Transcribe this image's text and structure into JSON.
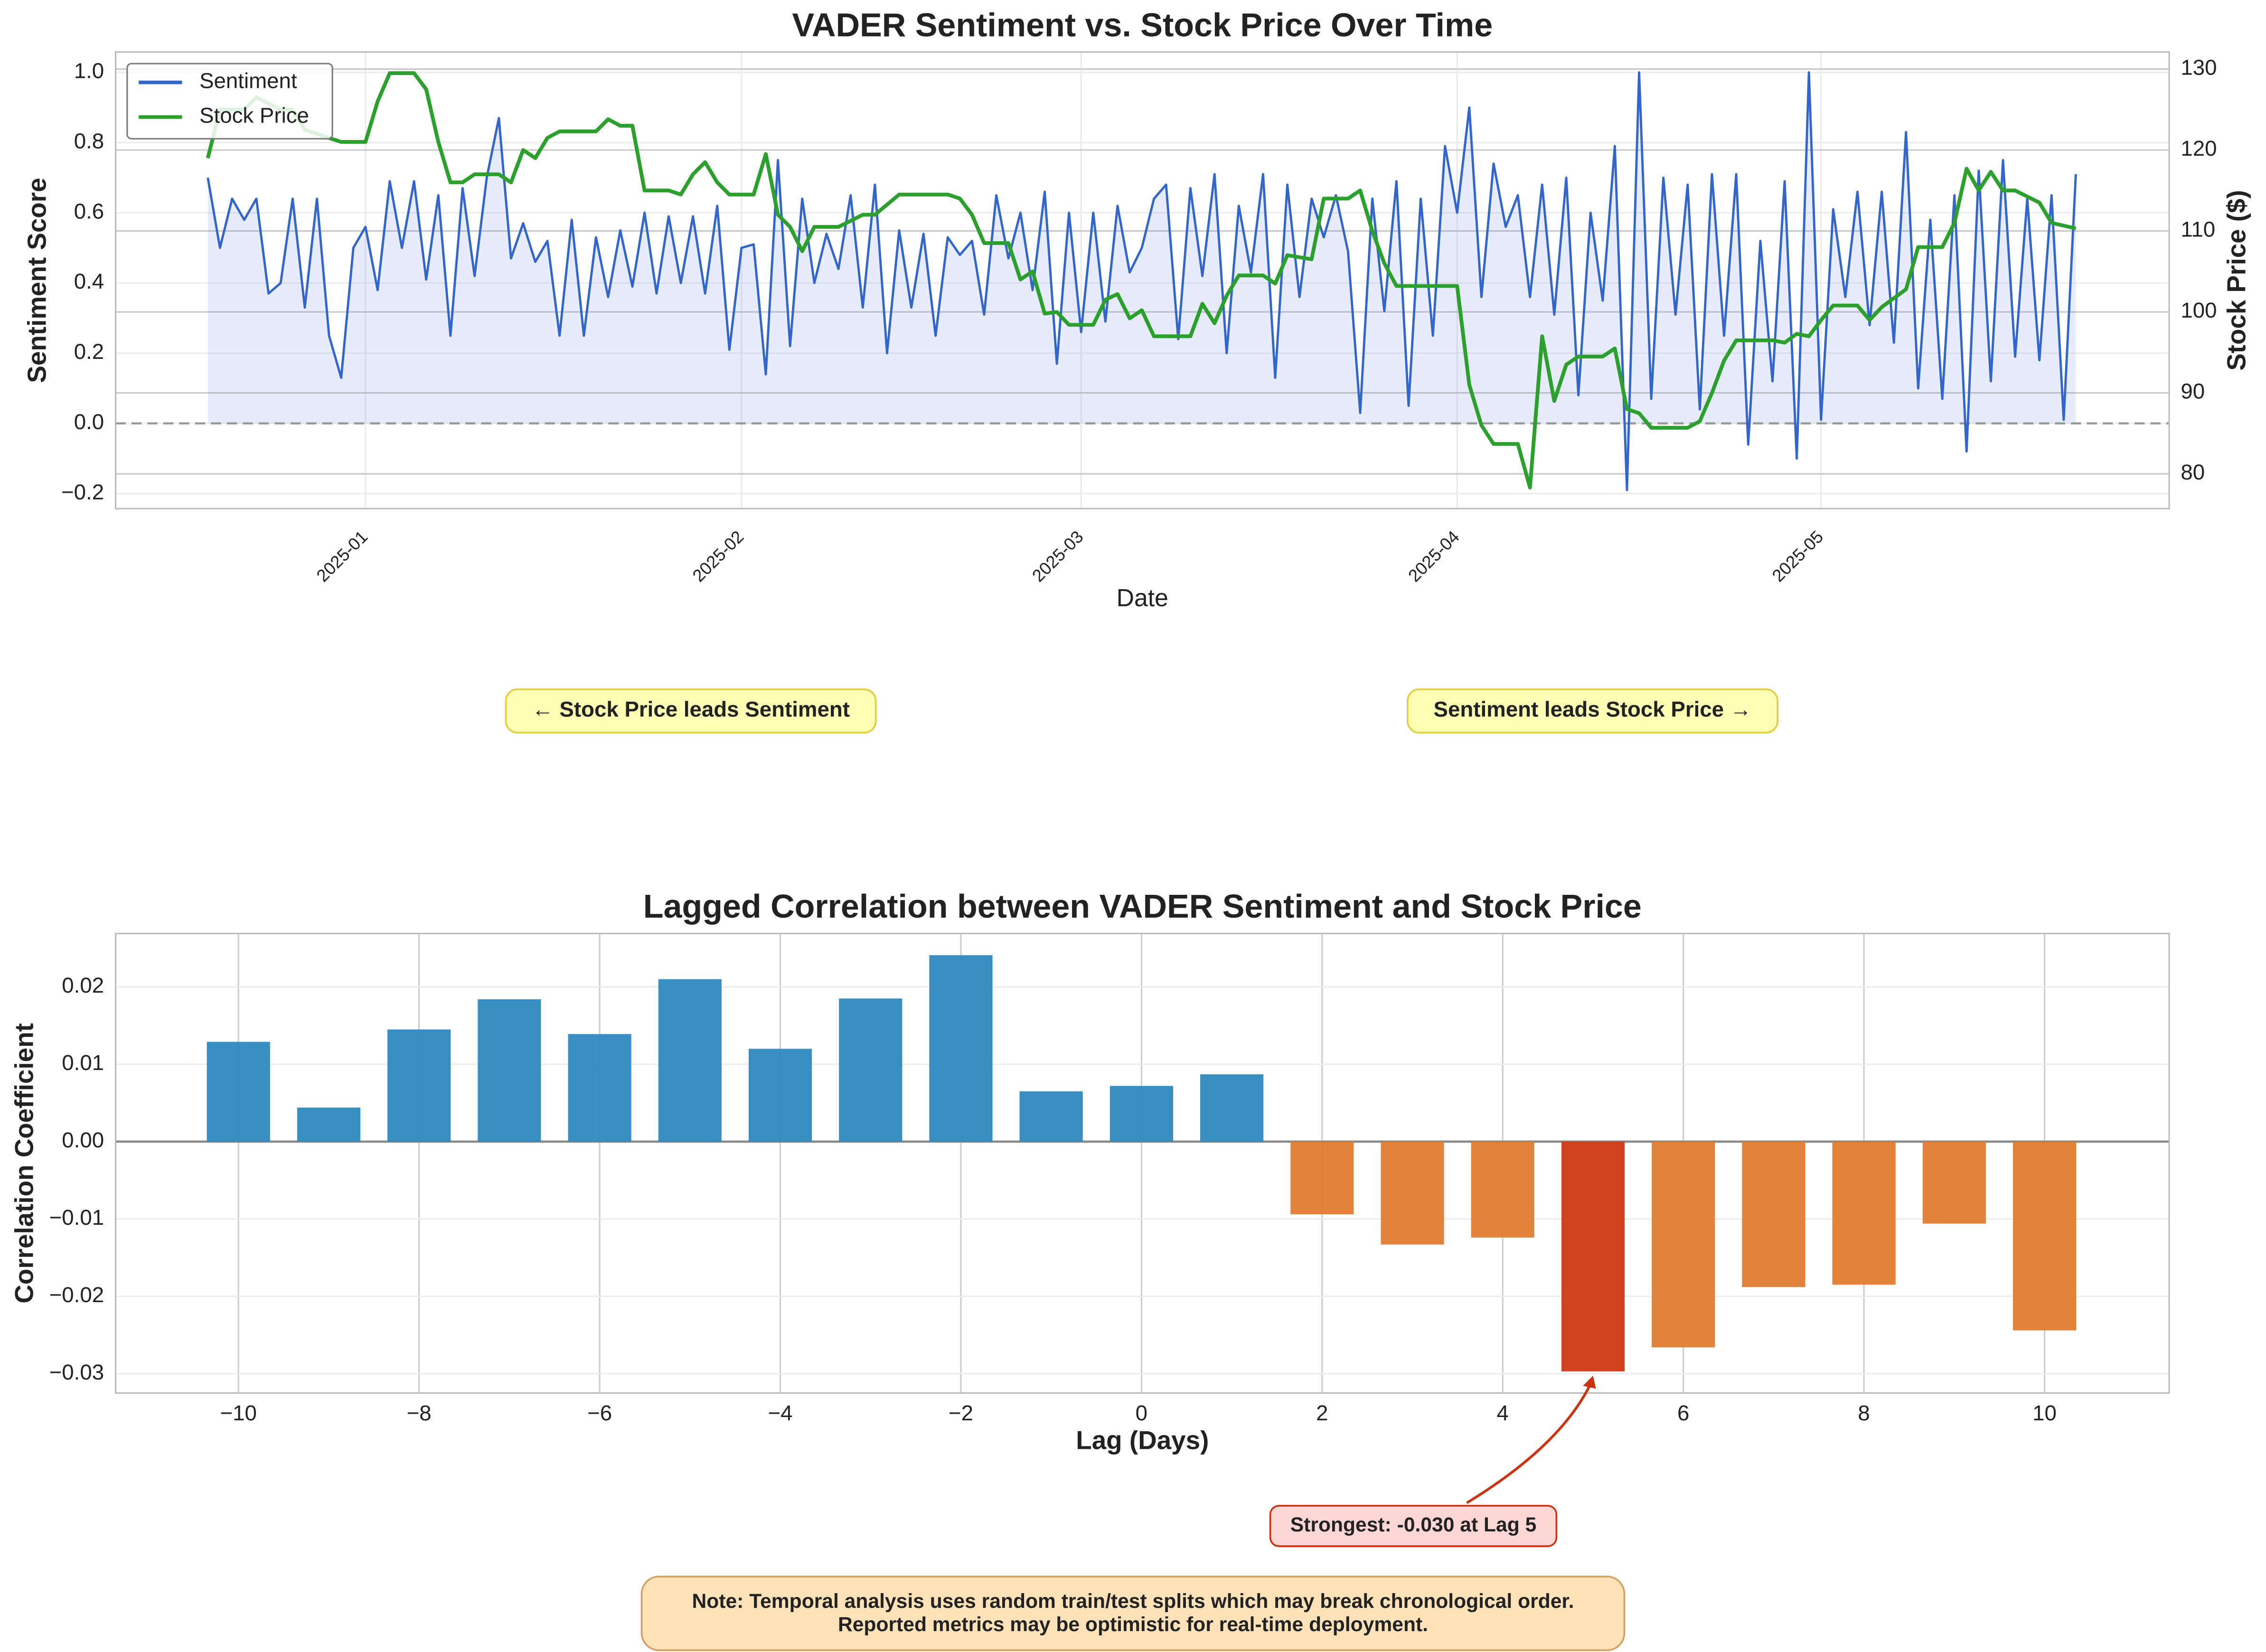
{
  "chart_data": [
    {
      "type": "line",
      "title": "VADER Sentiment vs. Stock Price Over Time",
      "xlabel": "Date",
      "ylabel": "Sentiment Score",
      "y2label": "Stock Price ($)",
      "xlim": [
        -20.6,
        148.7
      ],
      "xticks": [
        {
          "value": 0,
          "label": "2025-01"
        },
        {
          "value": 31,
          "label": "2025-02"
        },
        {
          "value": 59,
          "label": "2025-03"
        },
        {
          "value": 90,
          "label": "2025-04"
        },
        {
          "value": 120,
          "label": "2025-05"
        }
      ],
      "ylim": [
        -0.243,
        1.058
      ],
      "yticks": [
        {
          "value": -0.2,
          "label": "−0.2"
        },
        {
          "value": 0,
          "label": "0.0"
        },
        0.2,
        0.4,
        0.6,
        0.8,
        {
          "value": 1,
          "label": "1.0"
        }
      ],
      "y2lim": [
        75.7,
        132.1
      ],
      "y2ticks": [
        80,
        90,
        100,
        110,
        120,
        130
      ],
      "hline": 0,
      "grid": true,
      "legend": "upper left",
      "series": [
        {
          "name": "Sentiment",
          "color": "#3366cc",
          "fill": true,
          "x": [
            -13,
            -12,
            -11,
            -10,
            -9,
            -8,
            -7,
            -6,
            -5,
            -4,
            -3,
            -2,
            -1,
            0,
            1,
            2,
            3,
            4,
            5,
            6,
            7,
            8,
            9,
            10,
            11,
            12,
            13,
            14,
            15,
            16,
            17,
            18,
            19,
            20,
            21,
            22,
            23,
            24,
            25,
            26,
            27,
            28,
            29,
            30,
            31,
            32,
            33,
            34,
            35,
            36,
            37,
            38,
            39,
            40,
            41,
            42,
            43,
            44,
            45,
            46,
            47,
            48,
            49,
            50,
            51,
            52,
            53,
            54,
            55,
            56,
            57,
            58,
            59,
            60,
            61,
            62,
            63,
            64,
            65,
            66,
            67,
            68,
            69,
            70,
            71,
            72,
            73,
            74,
            75,
            76,
            77,
            78,
            79,
            80,
            81,
            82,
            83,
            84,
            85,
            86,
            87,
            88,
            89,
            90,
            91,
            92,
            93,
            94,
            95,
            96,
            97,
            98,
            99,
            100,
            101,
            102,
            103,
            104,
            105,
            106,
            107,
            108,
            109,
            110,
            111,
            112,
            113,
            114,
            115,
            116,
            117,
            118,
            119,
            120,
            121,
            122,
            123,
            124,
            125,
            126,
            127,
            128,
            129,
            130,
            131,
            132,
            133,
            134,
            135,
            136,
            137,
            138,
            139,
            140,
            141
          ],
          "values": [
            0.7,
            0.5,
            0.64,
            0.58,
            0.64,
            0.37,
            0.4,
            0.64,
            0.33,
            0.64,
            0.25,
            0.13,
            0.5,
            0.56,
            0.38,
            0.69,
            0.5,
            0.69,
            0.41,
            0.65,
            0.25,
            0.67,
            0.42,
            0.7,
            0.87,
            0.47,
            0.57,
            0.46,
            0.52,
            0.25,
            0.58,
            0.25,
            0.53,
            0.36,
            0.55,
            0.39,
            0.6,
            0.37,
            0.59,
            0.4,
            0.59,
            0.37,
            0.62,
            0.21,
            0.5,
            0.51,
            0.14,
            0.75,
            0.22,
            0.64,
            0.4,
            0.54,
            0.44,
            0.65,
            0.33,
            0.68,
            0.2,
            0.55,
            0.33,
            0.54,
            0.25,
            0.53,
            0.48,
            0.52,
            0.31,
            0.65,
            0.47,
            0.6,
            0.38,
            0.66,
            0.17,
            0.6,
            0.26,
            0.6,
            0.29,
            0.62,
            0.43,
            0.5,
            0.64,
            0.68,
            0.24,
            0.67,
            0.42,
            0.71,
            0.2,
            0.62,
            0.43,
            0.71,
            0.13,
            0.68,
            0.36,
            0.64,
            0.53,
            0.65,
            0.49,
            0.03,
            0.64,
            0.32,
            0.69,
            0.05,
            0.64,
            0.25,
            0.79,
            0.6,
            0.9,
            0.36,
            0.74,
            0.56,
            0.65,
            0.36,
            0.68,
            0.31,
            0.7,
            0.08,
            0.6,
            0.35,
            0.79,
            -0.19,
            1.0,
            0.07,
            0.7,
            0.31,
            0.68,
            0.04,
            0.71,
            0.25,
            0.71,
            -0.06,
            0.52,
            0.12,
            0.69,
            -0.1,
            1.0,
            0.01,
            0.61,
            0.36,
            0.66,
            0.28,
            0.66,
            0.23,
            0.83,
            0.1,
            0.58,
            0.07,
            0.65,
            -0.08,
            0.72,
            0.12,
            0.75,
            0.19,
            0.64,
            0.18,
            0.65,
            0.01,
            0.71
          ]
        },
        {
          "name": "Stock Price",
          "color": "#2ca02c",
          "axis": "y2",
          "x": [
            -13,
            -12,
            -10,
            -9,
            -7,
            -6,
            -5,
            -2,
            0,
            1,
            2,
            4,
            5,
            6,
            7,
            8,
            9,
            11,
            12,
            13,
            14,
            15,
            16,
            19,
            20,
            21,
            22,
            23,
            25,
            26,
            27,
            28,
            29,
            30,
            32,
            33,
            34,
            35,
            36,
            37,
            39,
            41,
            42,
            44,
            48,
            49,
            50,
            51,
            53,
            54,
            55,
            56,
            57,
            58,
            60,
            61,
            62,
            63,
            64,
            65,
            68,
            69,
            70,
            71,
            72,
            74,
            75,
            76,
            78,
            79,
            81,
            82,
            83,
            84,
            85,
            88,
            90,
            91,
            92,
            93,
            95,
            96,
            97,
            98,
            99,
            100,
            102,
            103,
            104,
            105,
            106,
            109,
            110,
            111,
            112,
            113,
            116,
            117,
            118,
            119,
            120,
            121,
            123,
            124,
            125,
            127,
            128,
            130,
            131,
            132,
            133,
            134,
            135,
            136,
            138,
            139,
            141
          ],
          "values": [
            119,
            125,
            125,
            126.5,
            125,
            125,
            122.5,
            121,
            121,
            126,
            129.5,
            129.5,
            127.5,
            121,
            116,
            116,
            117,
            117,
            116,
            120,
            119,
            121.5,
            122.3,
            122.3,
            123.8,
            123,
            123,
            115,
            115,
            114.5,
            117,
            118.5,
            116,
            114.5,
            114.5,
            119.5,
            112,
            110.5,
            107.5,
            110.5,
            110.5,
            112,
            112,
            114.5,
            114.5,
            114,
            112,
            108.5,
            108.5,
            104,
            105,
            99.8,
            100,
            98.4,
            98.4,
            101.5,
            102.2,
            99.2,
            100.2,
            97,
            97,
            101,
            98.6,
            102,
            104.5,
            104.5,
            103.5,
            107,
            106.5,
            114,
            114,
            115,
            110,
            106,
            103.2,
            103.2,
            103.2,
            91,
            86,
            83.7,
            83.7,
            78.3,
            97,
            89,
            93.5,
            94.5,
            94.5,
            95.5,
            88,
            87.5,
            85.7,
            85.7,
            86.5,
            90,
            94,
            96.5,
            96.5,
            96.2,
            97.3,
            97,
            99,
            100.8,
            100.8,
            99,
            100.6,
            102.8,
            108,
            108,
            111,
            117.7,
            115,
            117.3,
            115,
            115,
            113.5,
            111,
            110.3
          ]
        }
      ]
    },
    {
      "type": "bar",
      "title": "Lagged Correlation between VADER Sentiment and Stock Price",
      "xlabel": "Lag (Days)",
      "ylabel": "Correlation Coefficient",
      "x": [
        -10,
        -9,
        -8,
        -7,
        -6,
        -5,
        -4,
        -3,
        -2,
        -1,
        0,
        1,
        2,
        3,
        4,
        5,
        6,
        7,
        8,
        9,
        10
      ],
      "values": [
        0.0129,
        0.0044,
        0.0145,
        0.0184,
        0.0139,
        0.021,
        0.012,
        0.0185,
        0.0241,
        0.0065,
        0.0072,
        0.0087,
        -0.0094,
        -0.0133,
        -0.0124,
        -0.0297,
        -0.0266,
        -0.0188,
        -0.0185,
        -0.0106,
        -0.0244
      ],
      "colors": [
        "#2e88c0",
        "#2e88c0",
        "#2e88c0",
        "#2e88c0",
        "#2e88c0",
        "#2e88c0",
        "#2e88c0",
        "#2e88c0",
        "#2e88c0",
        "#2e88c0",
        "#2e88c0",
        "#2e88c0",
        "#e07b30",
        "#e07b30",
        "#e07b30",
        "#cc3a12",
        "#e07b30",
        "#e07b30",
        "#e07b30",
        "#e07b30",
        "#e07b30"
      ],
      "xlim": [
        -11.36,
        11.38
      ],
      "xticks": [
        {
          "value": -10,
          "label": "−10"
        },
        {
          "value": -8,
          "label": "−8"
        },
        {
          "value": -6,
          "label": "−6"
        },
        {
          "value": -4,
          "label": "−4"
        },
        {
          "value": -2,
          "label": "−2"
        },
        0,
        2,
        4,
        6,
        8,
        10
      ],
      "ylim": [
        -0.0325,
        0.0269
      ],
      "yticks": [
        {
          "value": -0.03,
          "label": "−0.03"
        },
        {
          "value": -0.02,
          "label": "−0.02"
        },
        {
          "value": -0.01,
          "label": "−0.01"
        },
        {
          "value": 0,
          "label": "0.00"
        },
        0.01,
        0.02
      ],
      "hline": 0,
      "grid": true,
      "annotation": {
        "text": "Strongest: -0.030 at Lag 5",
        "x": 5
      }
    }
  ],
  "annotations": [
    "← Stock Price leads Sentiment",
    "Sentiment leads Stock Price →"
  ],
  "note": [
    "Note: Temporal analysis uses random train/test splits which may break chronological order.",
    "Reported metrics may be optimistic for real-time deployment."
  ]
}
